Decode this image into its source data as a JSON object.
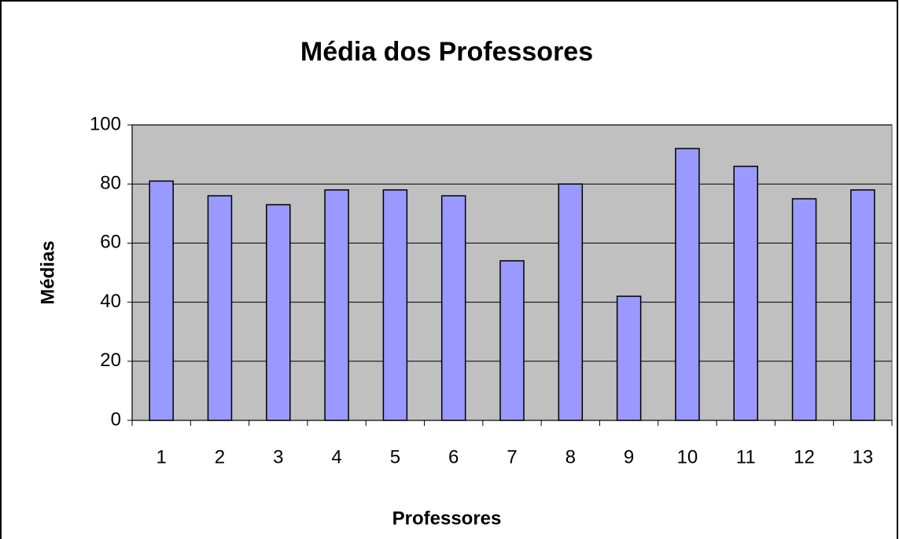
{
  "chart_data": {
    "type": "bar",
    "title": "Média dos Professores",
    "x_label": "Professores",
    "y_label": "Médias",
    "categories": [
      "1",
      "2",
      "3",
      "4",
      "5",
      "6",
      "7",
      "8",
      "9",
      "10",
      "11",
      "12",
      "13"
    ],
    "values": [
      81,
      76,
      73,
      78,
      78,
      76,
      54,
      80,
      42,
      92,
      86,
      75,
      78
    ],
    "color": "#9999ff",
    "ylim": [
      0,
      100
    ],
    "yticks": [
      0,
      20,
      40,
      60,
      80,
      100
    ],
    "grid": true
  }
}
